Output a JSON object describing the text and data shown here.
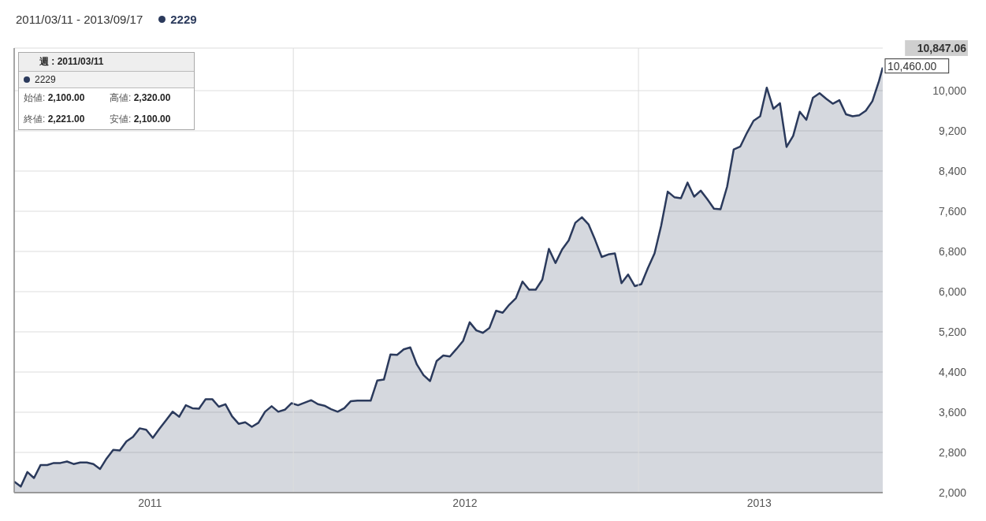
{
  "chart_data": {
    "type": "area",
    "subtitle": "2011/03/11 - 2013/09/17",
    "annotations": [
      "週 : 2011/03/11",
      "始値: 2,100.00",
      "高値: 2,320.00",
      "終値: 2,221.00",
      "安値: 2,100.00",
      {
        "text": "10,460.00",
        "x": "2013-09-17",
        "y": 10460
      }
    ],
    "x": [
      "2011-03-11",
      "2011-03-18",
      "2011-03-25",
      "2011-04-01",
      "2011-04-08",
      "2011-04-15",
      "2011-04-22",
      "2011-04-29",
      "2011-05-06",
      "2011-05-13",
      "2011-05-20",
      "2011-05-27",
      "2011-06-03",
      "2011-06-10",
      "2011-06-17",
      "2011-06-24",
      "2011-07-01",
      "2011-07-08",
      "2011-07-15",
      "2011-07-22",
      "2011-07-29",
      "2011-08-05",
      "2011-08-12",
      "2011-08-19",
      "2011-08-26",
      "2011-09-02",
      "2011-09-09",
      "2011-09-16",
      "2011-09-23",
      "2011-09-30",
      "2011-10-07",
      "2011-10-14",
      "2011-10-21",
      "2011-10-28",
      "2011-11-04",
      "2011-11-11",
      "2011-11-18",
      "2011-11-25",
      "2011-12-02",
      "2011-12-09",
      "2011-12-16",
      "2011-12-23",
      "2011-12-30",
      "2012-01-06",
      "2012-01-13",
      "2012-01-20",
      "2012-01-27",
      "2012-02-03",
      "2012-02-10",
      "2012-02-17",
      "2012-02-24",
      "2012-03-02",
      "2012-03-09",
      "2012-03-16",
      "2012-03-23",
      "2012-03-30",
      "2012-04-06",
      "2012-04-13",
      "2012-04-20",
      "2012-04-27",
      "2012-05-04",
      "2012-05-11",
      "2012-05-18",
      "2012-05-25",
      "2012-06-01",
      "2012-06-08",
      "2012-06-15",
      "2012-06-22",
      "2012-06-29",
      "2012-07-06",
      "2012-07-13",
      "2012-07-20",
      "2012-07-27",
      "2012-08-03",
      "2012-08-10",
      "2012-08-17",
      "2012-08-24",
      "2012-08-31",
      "2012-09-07",
      "2012-09-14",
      "2012-09-21",
      "2012-09-28",
      "2012-10-05",
      "2012-10-12",
      "2012-10-19",
      "2012-10-26",
      "2012-11-02",
      "2012-11-09",
      "2012-11-16",
      "2012-11-23",
      "2012-11-30",
      "2012-12-07",
      "2012-12-14",
      "2012-12-21",
      "2012-12-28",
      "2013-01-04",
      "2013-01-11",
      "2013-01-18",
      "2013-01-25",
      "2013-02-01",
      "2013-02-08",
      "2013-02-15",
      "2013-02-22",
      "2013-03-01",
      "2013-03-08",
      "2013-03-15",
      "2013-03-22",
      "2013-03-29",
      "2013-04-05",
      "2013-04-12",
      "2013-04-19",
      "2013-04-26",
      "2013-05-03",
      "2013-05-10",
      "2013-05-17",
      "2013-05-24",
      "2013-05-31",
      "2013-06-07",
      "2013-06-14",
      "2013-06-21",
      "2013-06-28",
      "2013-07-05",
      "2013-07-12",
      "2013-07-19",
      "2013-07-26",
      "2013-08-02",
      "2013-08-09",
      "2013-08-16",
      "2013-08-23",
      "2013-08-30",
      "2013-09-06",
      "2013-09-13",
      "2013-09-17"
    ],
    "series": [
      {
        "name": "2229",
        "color": "#2b3a5c",
        "values": [
          2220,
          2120,
          2410,
          2290,
          2550,
          2550,
          2590,
          2590,
          2620,
          2570,
          2600,
          2600,
          2570,
          2470,
          2680,
          2850,
          2840,
          3020,
          3110,
          3280,
          3250,
          3090,
          3270,
          3440,
          3610,
          3510,
          3740,
          3680,
          3670,
          3860,
          3860,
          3710,
          3760,
          3520,
          3370,
          3400,
          3310,
          3390,
          3610,
          3720,
          3610,
          3650,
          3780,
          3740,
          3790,
          3840,
          3760,
          3730,
          3660,
          3610,
          3680,
          3820,
          3830,
          3830,
          3830,
          4230,
          4250,
          4750,
          4740,
          4850,
          4890,
          4550,
          4340,
          4220,
          4620,
          4730,
          4710,
          4860,
          5020,
          5390,
          5230,
          5180,
          5280,
          5620,
          5580,
          5740,
          5870,
          6200,
          6040,
          6040,
          6240,
          6850,
          6570,
          6840,
          7020,
          7370,
          7480,
          7340,
          7030,
          6690,
          6740,
          6760,
          6170,
          6340,
          6110,
          6150,
          6470,
          6760,
          7310,
          7990,
          7880,
          7860,
          8170,
          7890,
          8010,
          7840,
          7650,
          7640,
          8090,
          8830,
          8890,
          9160,
          9400,
          9490,
          10060,
          9640,
          9750,
          8880,
          9100,
          9580,
          9420,
          9860,
          9950,
          9840,
          9740,
          9810,
          9530,
          9490,
          9510,
          9600,
          9790,
          10190,
          10460
        ]
      }
    ],
    "xlim": [
      "2011-03-11",
      "2013-09-17"
    ],
    "xticks": [
      {
        "value": "2012-01-01",
        "label": null
      },
      {
        "value": "2013-01-01",
        "label": null
      },
      {
        "value": "2011-08-02",
        "label": "2011"
      },
      {
        "value": "2012-07-01",
        "label": "2012"
      },
      {
        "value": "2013-05-09",
        "label": "2013"
      }
    ],
    "ylim": [
      2000,
      10847.06
    ],
    "yticks": [
      {
        "value": 2000,
        "label": "2,000"
      },
      {
        "value": 2800,
        "label": "2,800"
      },
      {
        "value": 3600,
        "label": "3,600"
      },
      {
        "value": 4400,
        "label": "4,400"
      },
      {
        "value": 5200,
        "label": "5,200"
      },
      {
        "value": 6000,
        "label": "6,000"
      },
      {
        "value": 6800,
        "label": "6,800"
      },
      {
        "value": 7600,
        "label": "7,600"
      },
      {
        "value": 8400,
        "label": "8,400"
      },
      {
        "value": 9200,
        "label": "9,200"
      },
      {
        "value": 10000,
        "label": "10,000"
      },
      {
        "value": 10847.06,
        "label": "10,847.06"
      }
    ],
    "grid": true,
    "legend": "top left",
    "marker": "none"
  }
}
